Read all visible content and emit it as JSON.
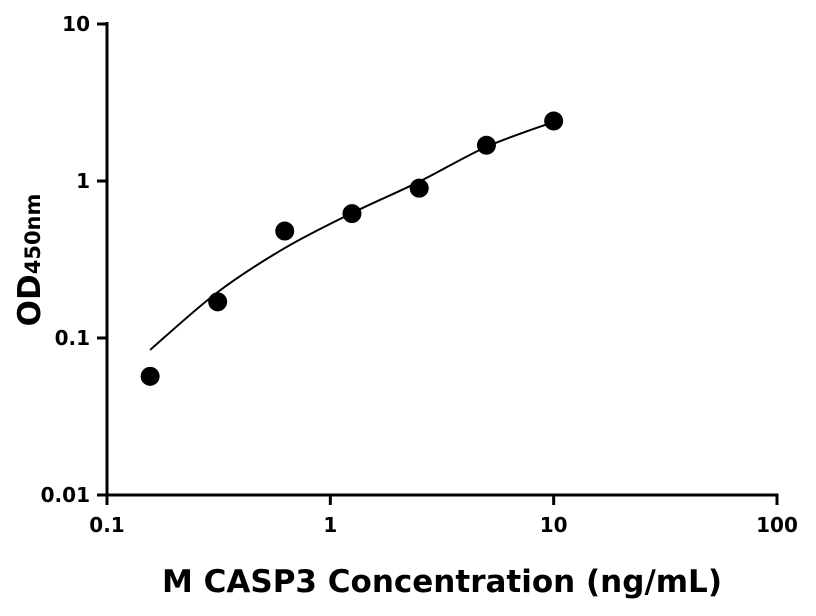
{
  "chart_data": {
    "type": "scatter",
    "title": "",
    "xlabel": "M CASP3 Concentration (ng/mL)",
    "ylabel": "OD",
    "ylabel_subscript": "450nm",
    "xscale": "log",
    "yscale": "log",
    "xlim": [
      0.1,
      100
    ],
    "ylim": [
      0.01,
      10
    ],
    "xticks": [
      "0.1",
      "1",
      "10",
      "100"
    ],
    "yticks": [
      "0.01",
      "0.1",
      "1",
      "10"
    ],
    "grid": false,
    "series": [
      {
        "kind": "points",
        "color": "#000000",
        "x": [
          0.156,
          0.313,
          0.625,
          1.25,
          2.5,
          5,
          10
        ],
        "y": [
          0.057,
          0.17,
          0.48,
          0.62,
          0.9,
          1.69,
          2.41
        ]
      },
      {
        "kind": "fit-curve",
        "color": "#000000",
        "x": [
          0.156,
          0.313,
          0.625,
          1.25,
          2.5,
          5,
          10
        ],
        "y": [
          0.084,
          0.196,
          0.374,
          0.625,
          0.99,
          1.65,
          2.38
        ]
      }
    ]
  }
}
